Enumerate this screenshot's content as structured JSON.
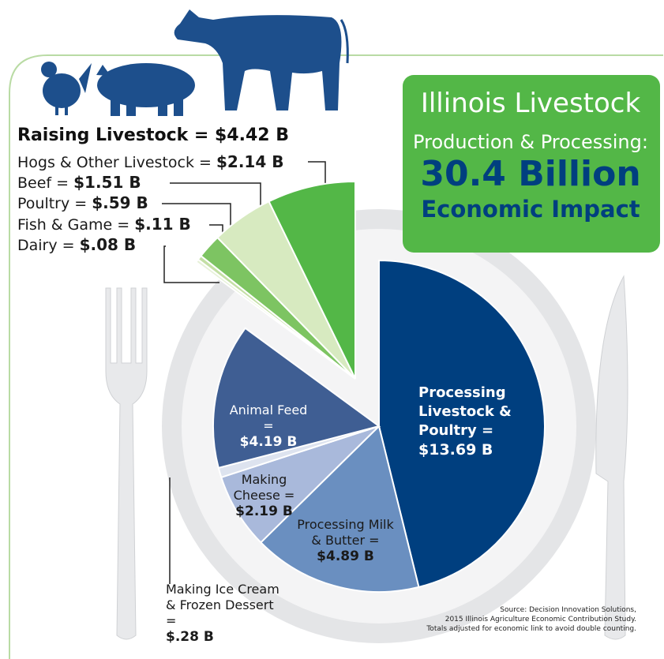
{
  "title_lines": [
    "Illinois Livestock",
    "Production & Processing:",
    "30.4 Billion",
    "Economic Impact"
  ],
  "group_heading": "Raising Livestock = $4.42 B",
  "source": [
    "Source: Decision Innovation Solutions,",
    "2015 Illinois Agriculture Economic Contribution Study.",
    "Totals adjusted for economic link to avoid double counting."
  ],
  "chart_data": {
    "type": "pie",
    "categories": [
      "Processing Livestock & Poultry =",
      "Processing Milk & Butter =",
      "Making Cheese =",
      "Making Ice Cream & Frozen Dessert =",
      "Animal Feed =",
      "Dairy =",
      "Fish & Game =",
      "Poultry =",
      "Beef =",
      "Hogs & Other Livestock ="
    ],
    "values": [
      13.69,
      4.89,
      2.19,
      0.28,
      4.19,
      0.08,
      0.11,
      0.59,
      1.51,
      2.14
    ],
    "value_labels": [
      "$13.69 B",
      "$4.89 B",
      "$2.19 B",
      "$.28 B",
      "$4.19 B",
      "$.08 B",
      "$.11 B",
      "$.59 B",
      "$1.51 B",
      "$2.14 B"
    ],
    "colors": [
      "#003f7f",
      "#6a8fc0",
      "#a9b9db",
      "#dde3ef",
      "#3f5e93",
      "#e7f1d9",
      "#c4dfa5",
      "#7dc462",
      "#d7eac0",
      "#53b747"
    ],
    "exploded": [
      false,
      false,
      false,
      false,
      false,
      true,
      true,
      true,
      true,
      true
    ]
  }
}
